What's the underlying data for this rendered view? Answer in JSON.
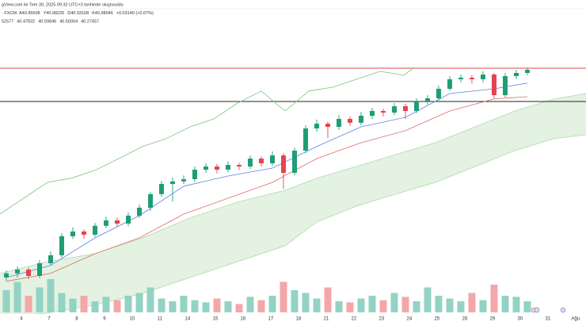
{
  "header": {
    "credit": "gView.com ile Tem 30, 2025 09:32 UTC+3 tarihinde oluşturuldu",
    "symbol": "· FXCM",
    "ohlc": [
      "A40.95508",
      "Y40.98226",
      "D40.93108",
      "K40.98046",
      "+0.03140 (+0.07%)"
    ],
    "indicator_values": [
      {
        "text": "52577",
        "color": "#2962ff"
      },
      {
        "text": "40.47832",
        "color": "#e04848"
      },
      {
        "text": "40.59846",
        "color": "#26a269"
      },
      {
        "text": "40.50004",
        "color": "#7cc98f"
      },
      {
        "text": "40.27457",
        "color": "#e04848"
      }
    ]
  },
  "chart_data": {
    "type": "candlestick",
    "up_color": "#1f9d76",
    "down_color": "#e5434f",
    "xlim": [
      -0.571,
      52.29
    ],
    "ylim": [
      40.075,
      40.975
    ],
    "xticks": [
      {
        "value": 1.35,
        "label": "4"
      },
      {
        "value": 3.85,
        "label": "7"
      },
      {
        "value": 6.35,
        "label": "8"
      },
      {
        "value": 8.85,
        "label": "9"
      },
      {
        "value": 11.35,
        "label": "10"
      },
      {
        "value": 13.85,
        "label": "11"
      },
      {
        "value": 16.35,
        "label": "14"
      },
      {
        "value": 18.85,
        "label": "15"
      },
      {
        "value": 21.35,
        "label": "16"
      },
      {
        "value": 23.85,
        "label": "17"
      },
      {
        "value": 26.35,
        "label": "18"
      },
      {
        "value": 28.85,
        "label": "21"
      },
      {
        "value": 31.35,
        "label": "22"
      },
      {
        "value": 33.85,
        "label": "23"
      },
      {
        "value": 36.35,
        "label": "24"
      },
      {
        "value": 38.85,
        "label": "25"
      },
      {
        "value": 41.35,
        "label": "28"
      },
      {
        "value": 43.85,
        "label": "29"
      },
      {
        "value": 46.35,
        "label": "30"
      },
      {
        "value": 48.85,
        "label": "31"
      },
      {
        "value": 51.35,
        "label": "Ağu"
      }
    ],
    "candles": {
      "open": [
        40.2,
        40.213,
        40.225,
        40.205,
        40.245,
        40.27,
        40.33,
        40.345,
        40.335,
        40.363,
        40.38,
        40.37,
        40.395,
        40.42,
        40.463,
        40.495,
        40.503,
        40.51,
        40.54,
        40.55,
        40.54,
        40.555,
        40.55,
        40.575,
        40.56,
        40.585,
        40.53,
        40.6,
        40.67,
        40.685,
        40.675,
        40.7,
        40.688,
        40.71,
        40.725,
        40.72,
        40.74,
        40.725,
        40.755,
        40.765,
        40.795,
        40.825,
        40.83,
        40.825,
        40.84,
        40.775,
        40.835,
        40.845
      ],
      "high": [
        40.222,
        40.235,
        40.232,
        40.255,
        40.282,
        40.34,
        40.358,
        40.352,
        40.372,
        40.392,
        40.388,
        40.405,
        40.43,
        40.47,
        40.505,
        40.515,
        40.522,
        40.55,
        40.56,
        40.558,
        40.566,
        40.562,
        40.585,
        40.582,
        40.598,
        40.592,
        40.61,
        40.68,
        40.698,
        40.692,
        40.712,
        40.708,
        40.722,
        40.735,
        40.732,
        40.75,
        40.748,
        40.765,
        40.775,
        40.805,
        40.835,
        40.84,
        40.838,
        40.85,
        40.845,
        40.845,
        40.855,
        40.862
      ],
      "low": [
        40.19,
        40.2,
        40.195,
        40.198,
        40.238,
        40.262,
        40.322,
        40.322,
        40.328,
        40.355,
        40.36,
        40.362,
        40.388,
        40.41,
        40.455,
        40.44,
        40.495,
        40.502,
        40.53,
        40.528,
        40.532,
        40.54,
        40.542,
        40.55,
        40.552,
        40.48,
        40.522,
        40.592,
        40.66,
        40.64,
        40.665,
        40.678,
        40.68,
        40.7,
        40.708,
        40.712,
        40.7,
        40.718,
        40.745,
        40.758,
        40.788,
        40.815,
        40.812,
        40.815,
        40.765,
        40.768,
        40.825,
        40.838
      ],
      "close": [
        40.213,
        40.225,
        40.205,
        40.245,
        40.27,
        40.33,
        40.345,
        40.335,
        40.363,
        40.38,
        40.37,
        40.395,
        40.42,
        40.463,
        40.495,
        40.503,
        40.51,
        40.54,
        40.55,
        40.54,
        40.555,
        40.55,
        40.575,
        40.56,
        40.585,
        40.53,
        40.6,
        40.67,
        40.685,
        40.675,
        40.7,
        40.688,
        40.71,
        40.725,
        40.72,
        40.74,
        40.725,
        40.755,
        40.765,
        40.795,
        40.825,
        40.83,
        40.825,
        40.84,
        40.775,
        40.835,
        40.845,
        40.855
      ]
    },
    "volume": {
      "vlim": [
        0,
        100
      ],
      "up_color": "#93d3c4",
      "down_color": "#f4a7a9",
      "values": [
        40,
        55,
        30,
        45,
        60,
        35,
        25,
        30,
        20,
        28,
        22,
        30,
        35,
        45,
        25,
        20,
        30,
        22,
        18,
        25,
        20,
        15,
        28,
        22,
        30,
        55,
        40,
        35,
        25,
        45,
        20,
        18,
        25,
        30,
        22,
        35,
        28,
        20,
        45,
        30,
        25,
        20,
        35,
        22,
        50,
        30,
        28,
        20
      ]
    },
    "lines": [
      {
        "color": "#5b83e8",
        "x": [
          0,
          4,
          8,
          12,
          16,
          20,
          24,
          28,
          32,
          36,
          40,
          44,
          47
        ],
        "values": [
          40.2,
          40.238,
          40.325,
          40.395,
          40.488,
          40.52,
          40.545,
          40.613,
          40.675,
          40.705,
          40.78,
          40.795,
          40.813
        ]
      },
      {
        "color": "#e06a6a",
        "x": [
          0,
          4,
          8,
          12,
          16,
          20,
          24,
          28,
          32,
          36,
          40,
          44,
          47
        ],
        "values": [
          40.188,
          40.213,
          40.275,
          40.325,
          40.4,
          40.45,
          40.5,
          40.575,
          40.625,
          40.663,
          40.725,
          40.763,
          40.77
        ]
      },
      {
        "color": "#7cc47f",
        "x": [
          -0.57,
          1.57,
          3.71,
          5.86,
          8.0,
          10.14,
          12.29,
          14.43,
          16.57,
          18.71,
          20.86,
          23.0,
          25.14,
          27.29,
          29.43,
          31.57,
          33.71,
          35.86,
          36.71
        ],
        "values": [
          40.4,
          40.45,
          40.5,
          40.513,
          40.538,
          40.575,
          40.613,
          40.638,
          40.675,
          40.7,
          40.75,
          40.788,
          40.725,
          40.788,
          40.8,
          40.825,
          40.85,
          40.838,
          40.86
        ]
      }
    ],
    "cloud": {
      "fill": "#e3f2e1",
      "line_color": "#a9d8a8",
      "x": [
        -0.57,
        3.71,
        8.0,
        12.29,
        16.57,
        20.86,
        25.14,
        28.0,
        31.57,
        35.14,
        38.71,
        42.29,
        45.86,
        49.43,
        52.29
      ],
      "span_a": [
        40.213,
        40.25,
        40.275,
        40.325,
        40.388,
        40.438,
        40.475,
        40.513,
        40.55,
        40.588,
        40.625,
        40.675,
        40.725,
        40.763,
        40.78
      ],
      "span_b": [
        40.075,
        40.088,
        40.113,
        40.15,
        40.2,
        40.25,
        40.3,
        40.375,
        40.425,
        40.463,
        40.5,
        40.55,
        40.6,
        40.638,
        40.65
      ]
    },
    "hlines": [
      {
        "value": 40.86,
        "color": "#e04848"
      },
      {
        "value": 40.755,
        "color": "#222222"
      }
    ]
  }
}
